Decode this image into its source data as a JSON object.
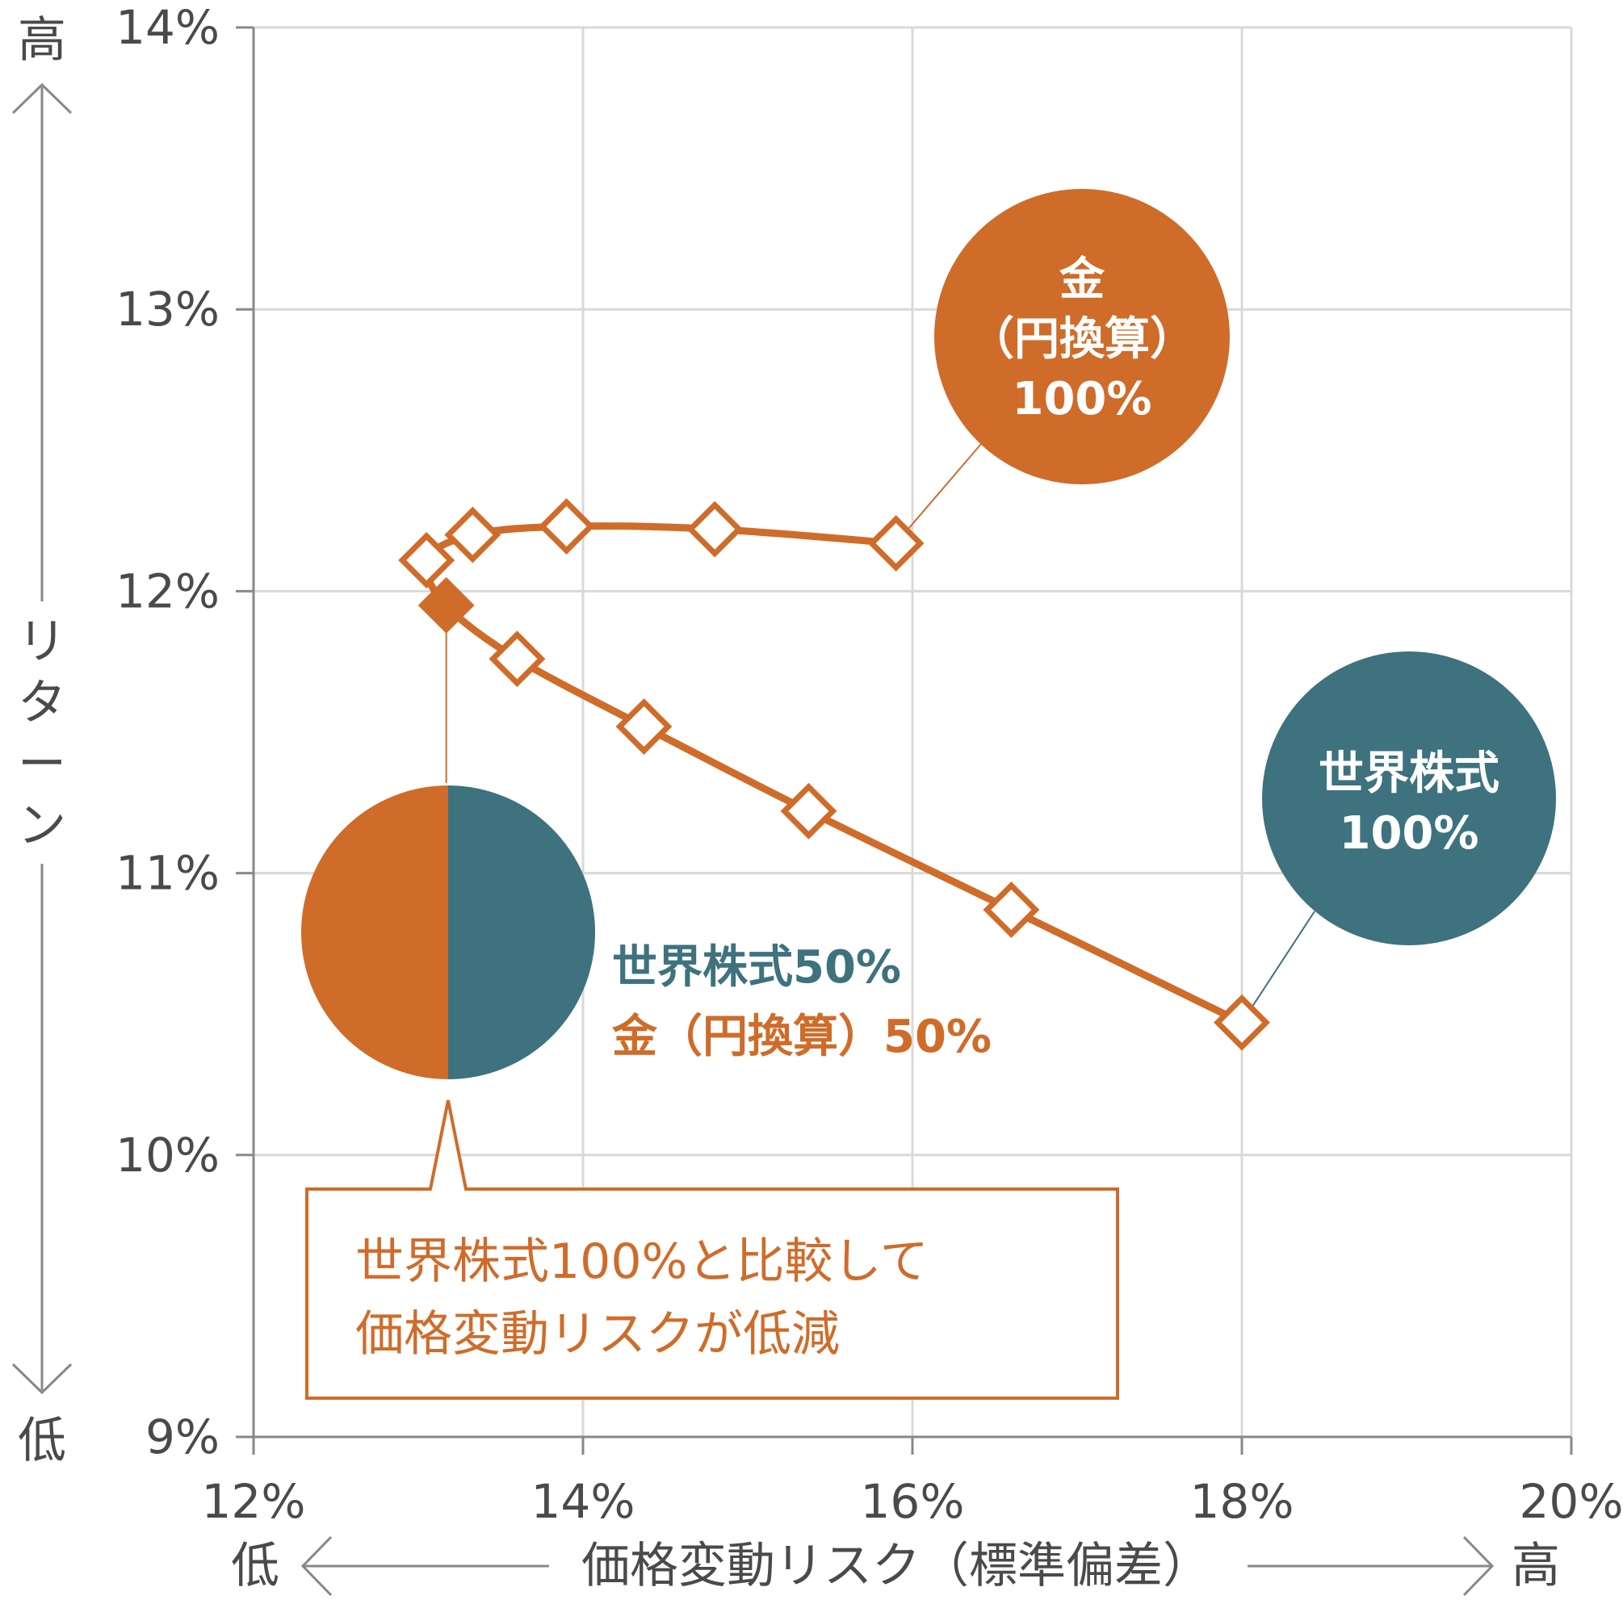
{
  "colors": {
    "orange": "#cf6c2a",
    "teal": "#3e727e",
    "grid": "#d9d9d9",
    "axis": "#888888",
    "text": "#4a4a4a"
  },
  "chart_data": {
    "type": "line",
    "xlabel": "価格変動リスク（標準偏差）",
    "ylabel": "リターン",
    "x_low_label": "低",
    "x_high_label": "高",
    "y_low_label": "低",
    "y_high_label": "高",
    "xlim": [
      12,
      20
    ],
    "ylim": [
      9,
      14
    ],
    "x_ticks": [
      12,
      14,
      16,
      18,
      20
    ],
    "y_ticks": [
      9,
      10,
      11,
      12,
      13,
      14
    ],
    "x_tick_labels": [
      "12%",
      "14%",
      "16%",
      "18%",
      "20%"
    ],
    "y_tick_labels": [
      "9%",
      "10%",
      "11%",
      "12%",
      "13%",
      "14%"
    ],
    "grid": true,
    "series": [
      {
        "points": [
          {
            "x": 15.9,
            "y": 12.17
          },
          {
            "x": 14.8,
            "y": 12.22
          },
          {
            "x": 13.9,
            "y": 12.23
          },
          {
            "x": 13.33,
            "y": 12.2
          },
          {
            "x": 13.05,
            "y": 12.11
          },
          {
            "x": 13.17,
            "y": 11.95,
            "highlight": true
          },
          {
            "x": 13.6,
            "y": 11.76
          },
          {
            "x": 14.37,
            "y": 11.52
          },
          {
            "x": 15.37,
            "y": 11.22
          },
          {
            "x": 16.6,
            "y": 10.87
          },
          {
            "x": 18.0,
            "y": 10.47
          }
        ]
      }
    ],
    "annotations": {
      "gold": {
        "line1": "金",
        "line2": "（円換算）",
        "line3": "100%"
      },
      "equity": {
        "line1": "世界株式",
        "line2": "100%"
      },
      "mix": {
        "line1": "世界株式50%",
        "line2": "金（円換算）50%"
      },
      "callout": {
        "line1": "世界株式100%と比較して",
        "line2": "価格変動リスクが低減"
      }
    }
  }
}
